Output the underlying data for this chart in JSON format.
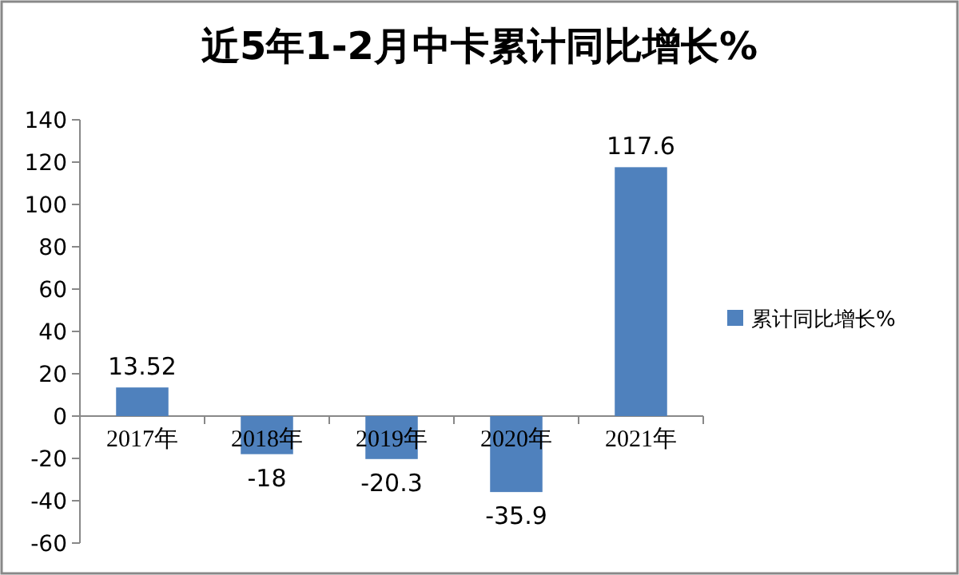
{
  "chart_data": {
    "type": "bar",
    "title": "近5年1-2月中卡累计同比增长%",
    "categories": [
      "2017年",
      "2018年",
      "2019年",
      "2020年",
      "2021年"
    ],
    "series": [
      {
        "name": "累计同比增长%",
        "color": "#4f81bd",
        "values": [
          13.52,
          -18,
          -20.3,
          -35.9,
          117.6
        ]
      }
    ],
    "ylim": [
      -60,
      140
    ],
    "yticks": [
      -60,
      -40,
      -20,
      0,
      20,
      40,
      60,
      80,
      100,
      120,
      140
    ],
    "data_labels": true,
    "legend": "right"
  }
}
